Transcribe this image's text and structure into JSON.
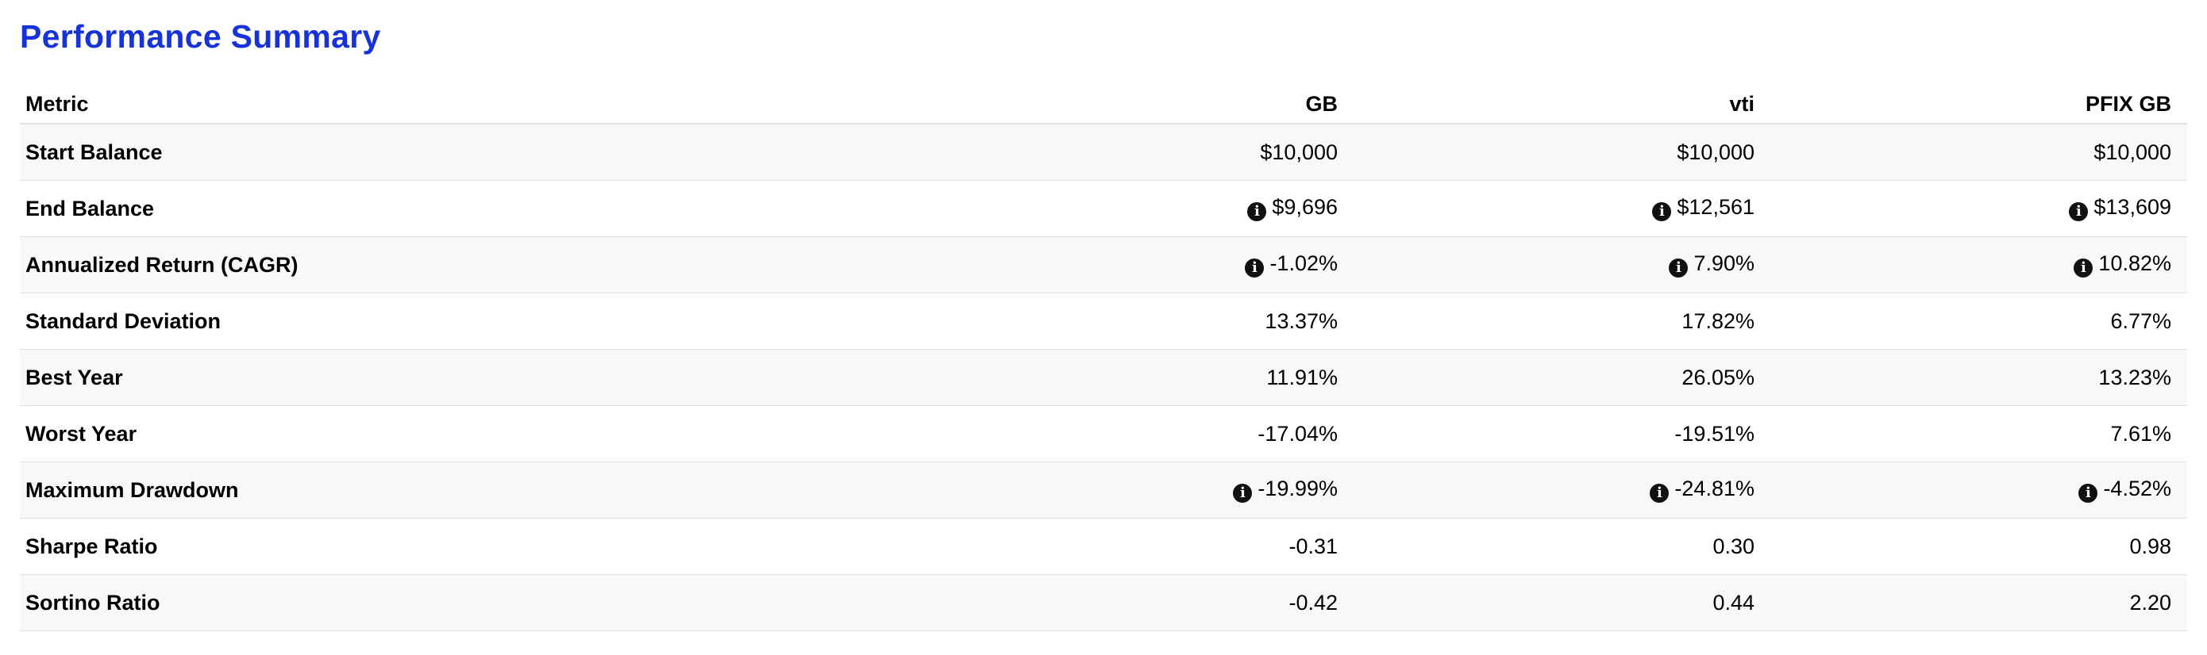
{
  "title": "Performance Summary",
  "columns": [
    "Metric",
    "GB",
    "vti",
    "PFIX GB"
  ],
  "rows": [
    {
      "label": "Start Balance",
      "cells": [
        {
          "value": "$10,000",
          "info": false
        },
        {
          "value": "$10,000",
          "info": false
        },
        {
          "value": "$10,000",
          "info": false
        }
      ]
    },
    {
      "label": "End Balance",
      "cells": [
        {
          "value": "$9,696",
          "info": true
        },
        {
          "value": "$12,561",
          "info": true
        },
        {
          "value": "$13,609",
          "info": true
        }
      ]
    },
    {
      "label": "Annualized Return (CAGR)",
      "cells": [
        {
          "value": "-1.02%",
          "info": true
        },
        {
          "value": "7.90%",
          "info": true
        },
        {
          "value": "10.82%",
          "info": true
        }
      ]
    },
    {
      "label": "Standard Deviation",
      "cells": [
        {
          "value": "13.37%",
          "info": false
        },
        {
          "value": "17.82%",
          "info": false
        },
        {
          "value": "6.77%",
          "info": false
        }
      ]
    },
    {
      "label": "Best Year",
      "cells": [
        {
          "value": "11.91%",
          "info": false
        },
        {
          "value": "26.05%",
          "info": false
        },
        {
          "value": "13.23%",
          "info": false
        }
      ]
    },
    {
      "label": "Worst Year",
      "cells": [
        {
          "value": "-17.04%",
          "info": false
        },
        {
          "value": "-19.51%",
          "info": false
        },
        {
          "value": "7.61%",
          "info": false
        }
      ]
    },
    {
      "label": "Maximum Drawdown",
      "cells": [
        {
          "value": "-19.99%",
          "info": true
        },
        {
          "value": "-24.81%",
          "info": true
        },
        {
          "value": "-4.52%",
          "info": true
        }
      ]
    },
    {
      "label": "Sharpe Ratio",
      "cells": [
        {
          "value": "-0.31",
          "info": false
        },
        {
          "value": "0.30",
          "info": false
        },
        {
          "value": "0.98",
          "info": false
        }
      ]
    },
    {
      "label": "Sortino Ratio",
      "cells": [
        {
          "value": "-0.42",
          "info": false
        },
        {
          "value": "0.44",
          "info": false
        },
        {
          "value": "2.20",
          "info": false
        }
      ]
    }
  ],
  "icons": {
    "info": "info-circle-icon",
    "info_glyph": "i"
  },
  "colors": {
    "title": "#1632d8",
    "row_alt": "#f8f8f8",
    "divider": "#dedede"
  }
}
